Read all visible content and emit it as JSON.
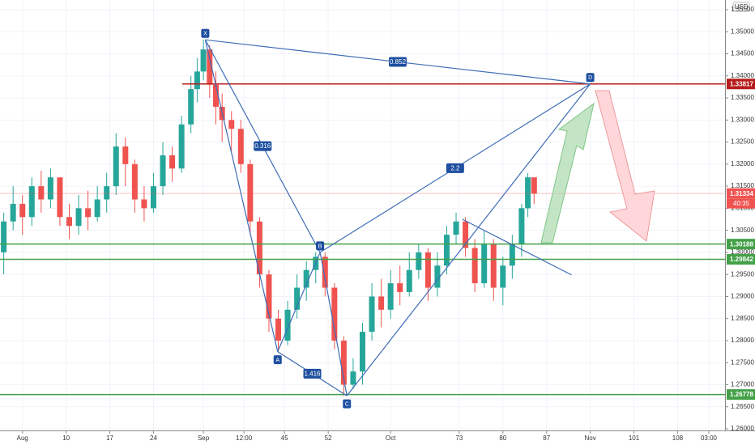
{
  "chart_data": {
    "type": "candlestick",
    "currency": "USD",
    "xlim": [
      -0.6,
      115.6
    ],
    "ylim": [
      1.25964,
      1.3572
    ],
    "xticks": [
      {
        "value": 3,
        "label": "Aug"
      },
      10,
      17,
      24,
      {
        "value": 32,
        "label": "Sep"
      },
      {
        "value": 38.5,
        "label": "12:00"
      },
      45,
      52,
      {
        "value": 62,
        "label": "Oct"
      },
      73,
      80,
      87,
      {
        "value": 94,
        "label": "Nov"
      },
      101,
      108,
      {
        "value": 113,
        "label": "03:00"
      }
    ],
    "yticks": [
      {
        "value": 1.26,
        "label": "1.26000"
      },
      {
        "value": 1.265,
        "label": "1.26500"
      },
      {
        "value": 1.27,
        "label": "1.27000"
      },
      {
        "value": 1.275,
        "label": "1.27500"
      },
      {
        "value": 1.28,
        "label": "1.28000"
      },
      {
        "value": 1.285,
        "label": "1.28500"
      },
      {
        "value": 1.29,
        "label": "1.29000"
      },
      {
        "value": 1.295,
        "label": "1.29500"
      },
      {
        "value": 1.3,
        "label": "1.30000"
      },
      {
        "value": 1.305,
        "label": "1.30500"
      },
      {
        "value": 1.31,
        "label": "1.31000"
      },
      {
        "value": 1.315,
        "label": "1.31500"
      },
      {
        "value": 1.32,
        "label": "1.32000"
      },
      {
        "value": 1.325,
        "label": "1.32500"
      },
      {
        "value": 1.33,
        "label": "1.33000"
      },
      {
        "value": 1.335,
        "label": "1.33500"
      },
      {
        "value": 1.34,
        "label": "1.34000"
      },
      {
        "value": 1.345,
        "label": "1.34500"
      },
      {
        "value": 1.35,
        "label": "1.35000"
      },
      {
        "value": 1.355,
        "label": "1.35500"
      }
    ],
    "up_color": "#26a69a",
    "down_color": "#ef5350",
    "candles": {
      "x": [
        0,
        1.5,
        3,
        4.5,
        6,
        7.5,
        9,
        10.5,
        12,
        13.5,
        15,
        16.5,
        18,
        19.5,
        21,
        22.5,
        24,
        25.5,
        27,
        28.5,
        30,
        31,
        32,
        33,
        34,
        35,
        36.5,
        38,
        39.5,
        41,
        42.5,
        44,
        45.5,
        47,
        48.5,
        50,
        51.5,
        53,
        54.5,
        56,
        57.5,
        59,
        60.5,
        62,
        63.5,
        65,
        66.5,
        68,
        69.5,
        71,
        72.5,
        74,
        75.5,
        77,
        78.5,
        80,
        81.5,
        83,
        84,
        85
      ],
      "open": [
        1.3,
        1.307,
        1.311,
        1.308,
        1.315,
        1.312,
        1.317,
        1.308,
        1.306,
        1.31,
        1.308,
        1.312,
        1.315,
        1.324,
        1.32,
        1.312,
        1.31,
        1.315,
        1.322,
        1.319,
        1.329,
        1.337,
        1.341,
        1.346,
        1.338,
        1.333,
        1.33,
        1.328,
        1.32,
        1.307,
        1.295,
        1.285,
        1.28,
        1.287,
        1.292,
        1.296,
        1.299,
        1.292,
        1.28,
        1.27,
        1.273,
        1.282,
        1.29,
        1.287,
        1.293,
        1.291,
        1.296,
        1.3,
        1.292,
        1.297,
        1.304,
        1.307,
        1.301,
        1.293,
        1.302,
        1.292,
        1.297,
        1.302,
        1.31,
        1.317
      ],
      "high": [
        1.309,
        1.315,
        1.313,
        1.317,
        1.3185,
        1.319,
        1.317,
        1.311,
        1.313,
        1.314,
        1.315,
        1.318,
        1.327,
        1.326,
        1.321,
        1.315,
        1.318,
        1.325,
        1.324,
        1.331,
        1.34,
        1.344,
        1.3482,
        1.347,
        1.341,
        1.336,
        1.332,
        1.33,
        1.321,
        1.308,
        1.296,
        1.287,
        1.289,
        1.295,
        1.298,
        1.3,
        1.3,
        1.293,
        1.281,
        1.276,
        1.284,
        1.293,
        1.294,
        1.296,
        1.297,
        1.3,
        1.302,
        1.301,
        1.3,
        1.306,
        1.309,
        1.308,
        1.303,
        1.305,
        1.303,
        1.299,
        1.304,
        1.311,
        1.318,
        1.3165
      ],
      "low": [
        1.295,
        1.305,
        1.304,
        1.306,
        1.309,
        1.31,
        1.306,
        1.303,
        1.304,
        1.305,
        1.307,
        1.309,
        1.313,
        1.315,
        1.309,
        1.307,
        1.309,
        1.313,
        1.316,
        1.318,
        1.327,
        1.334,
        1.339,
        1.335,
        1.329,
        1.325,
        1.323,
        1.318,
        1.304,
        1.292,
        1.282,
        1.2775,
        1.279,
        1.285,
        1.289,
        1.293,
        1.29,
        1.278,
        1.2675,
        1.269,
        1.27,
        1.28,
        1.283,
        1.285,
        1.288,
        1.29,
        1.294,
        1.289,
        1.29,
        1.295,
        1.302,
        1.299,
        1.291,
        1.292,
        1.289,
        1.288,
        1.294,
        1.299,
        1.308,
        1.311
      ],
      "close": [
        1.307,
        1.311,
        1.308,
        1.315,
        1.312,
        1.317,
        1.308,
        1.306,
        1.31,
        1.308,
        1.312,
        1.315,
        1.324,
        1.32,
        1.312,
        1.31,
        1.315,
        1.322,
        1.319,
        1.329,
        1.337,
        1.341,
        1.346,
        1.338,
        1.333,
        1.33,
        1.328,
        1.32,
        1.307,
        1.295,
        1.285,
        1.28,
        1.287,
        1.292,
        1.296,
        1.299,
        1.292,
        1.28,
        1.27,
        1.273,
        1.282,
        1.29,
        1.287,
        1.293,
        1.291,
        1.296,
        1.3,
        1.292,
        1.297,
        1.304,
        1.307,
        1.301,
        1.293,
        1.302,
        1.292,
        1.297,
        1.302,
        1.31,
        1.317,
        1.3133
      ]
    },
    "levels": [
      {
        "value": 1.33817,
        "color": "#b71c1c",
        "start": 28.6
      },
      {
        "value": 1.31334,
        "color": "#ef5350",
        "faint": true,
        "countdown": "40:35"
      },
      {
        "value": 1.30188,
        "color": "#43a047"
      },
      {
        "value": 1.29842,
        "color": "#43a047"
      },
      {
        "value": 1.26778,
        "color": "#43a047"
      }
    ],
    "pattern": {
      "color": "#3f6db5",
      "points": [
        {
          "label": "X",
          "x": 32.3,
          "y": 1.34817
        },
        {
          "label": "A",
          "x": 43.9,
          "y": 1.2775
        },
        {
          "label": "B",
          "x": 50.7,
          "y": 1.3
        },
        {
          "label": "C",
          "x": 55,
          "y": 1.2675
        },
        {
          "label": "D",
          "x": 94,
          "y": 1.33817
        }
      ],
      "ratios": [
        {
          "ratio": 0.852,
          "from": 0,
          "to": 4
        },
        {
          "ratio": 0.316,
          "from": 0,
          "to": 2
        },
        {
          "ratio": 1.416,
          "from": 1,
          "to": 3
        },
        {
          "ratio": 2.2,
          "from": 2,
          "to": 4
        }
      ]
    },
    "trendline": {
      "x": [
        73.5,
        91
      ],
      "y": [
        1.3075,
        1.2949
      ]
    }
  }
}
